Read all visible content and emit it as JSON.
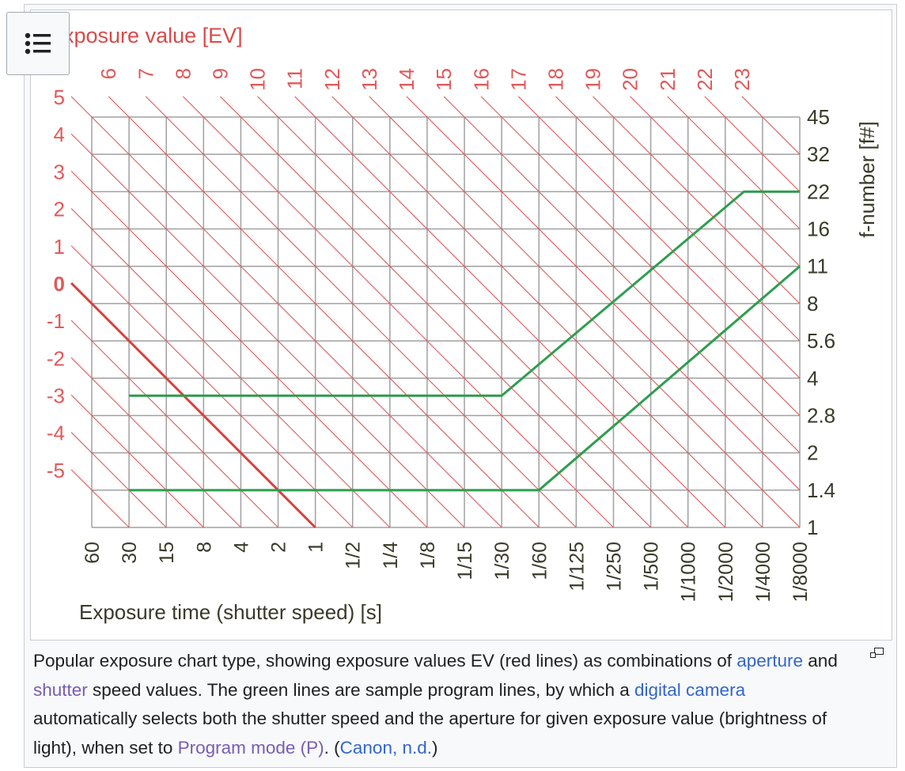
{
  "toc_button": {
    "icon": "list-bullets-icon"
  },
  "enlarge_button": {
    "icon": "magnify-clip-icon"
  },
  "colors": {
    "ev_lines": "#e05a5a",
    "ev_zero_line": "#d94040",
    "program_lines": "#2e9e4e",
    "grid": "#a0a0a0",
    "link": "#3366cc",
    "visited_link": "#795cb2"
  },
  "chart_data": {
    "type": "line",
    "title": "Exposure value [EV]",
    "xlabel": "Exposure time (shutter speed) [s]",
    "ylabel": "f-number [f#]",
    "x_ticks": [
      "60",
      "30",
      "15",
      "8",
      "4",
      "2",
      "1",
      "1/2",
      "1/4",
      "1/8",
      "1/15",
      "1/30",
      "1/60",
      "1/125",
      "1/250",
      "1/500",
      "1/1000",
      "1/2000",
      "1/4000",
      "1/8000"
    ],
    "y_ticks": [
      "1",
      "1.4",
      "2",
      "2.8",
      "4",
      "5.6",
      "8",
      "11",
      "16",
      "22",
      "32",
      "45"
    ],
    "grid": true,
    "ev_lines": {
      "values": [
        -5,
        -4,
        -3,
        -2,
        -1,
        0,
        1,
        2,
        3,
        4,
        5,
        6,
        7,
        8,
        9,
        10,
        11,
        12,
        13,
        14,
        15,
        16,
        17,
        18,
        19,
        20,
        21,
        22,
        23
      ],
      "left_labels": [
        "5",
        "4",
        "3",
        "2",
        "1",
        "0",
        "-1",
        "-2",
        "-3",
        "-4",
        "-5"
      ],
      "top_labels": [
        "6",
        "7",
        "8",
        "9",
        "10",
        "11",
        "12",
        "13",
        "14",
        "15",
        "16",
        "17",
        "18",
        "19",
        "20",
        "21",
        "22",
        "23"
      ],
      "highlighted": 0
    },
    "series": [
      {
        "points": [
          [
            "30",
            3.4
          ],
          [
            "1/30",
            3.4
          ],
          [
            "1/2900",
            22
          ],
          [
            "1/8000",
            22
          ]
        ]
      },
      {
        "points": [
          [
            "30",
            1.4
          ],
          [
            "1/60",
            1.4
          ],
          [
            "1/8000",
            11
          ]
        ]
      }
    ]
  },
  "caption": {
    "t1": "Popular exposure chart type, showing exposure values EV (red lines) as combinations of ",
    "link_aperture": "aperture",
    "t2": " and ",
    "link_shutter": "shutter",
    "t3": " speed values. The green lines are sample program lines, by which a ",
    "link_digital_camera": "digital camera",
    "t4": " automatically selects both the shutter speed and the aperture for given exposure value (brightness of light), when set to ",
    "link_program_mode": "Program mode (P)",
    "t5": ". (",
    "link_canon": "Canon, n.d.",
    "t6": ")"
  }
}
